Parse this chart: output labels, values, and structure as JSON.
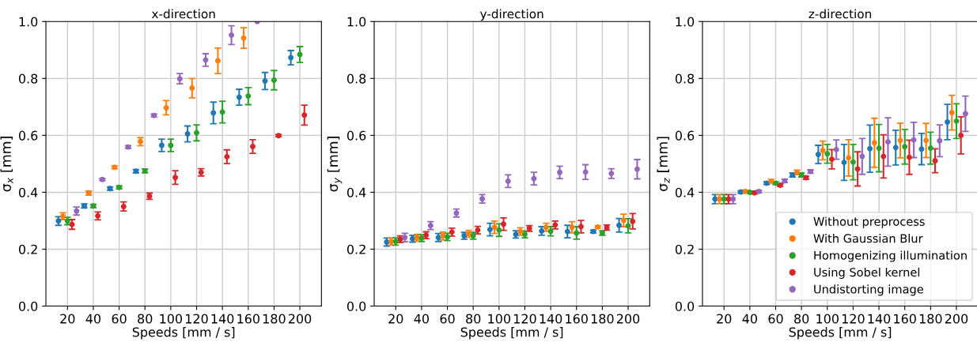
{
  "chart_data": [
    {
      "type": "scatter",
      "title": "x-direction",
      "xlabel": "Speeds [mm / s]",
      "ylabel": "σ$_{x}$ [mm]",
      "xlim": [
        3.3,
        216.7
      ],
      "ylim": [
        0,
        1
      ],
      "xticks": [
        20,
        40,
        60,
        80,
        100,
        120,
        140,
        160,
        180,
        200
      ],
      "yticks": [
        {
          "value": 0,
          "label": "0.0"
        },
        {
          "value": 0.2,
          "label": "0.2"
        },
        {
          "value": 0.4,
          "label": "0.4"
        },
        {
          "value": 0.6,
          "label": "0.6"
        },
        {
          "value": 0.8,
          "label": "0.8"
        },
        {
          "value": 1,
          "label": "1.0"
        }
      ],
      "grid": true,
      "marker": "circle",
      "legend": false,
      "series": [
        {
          "color": "#1f77b4",
          "x": [
            13,
            33,
            53,
            73,
            93,
            113,
            133,
            153,
            173,
            193
          ],
          "values": [
            0.299,
            0.352,
            0.413,
            0.474,
            0.565,
            0.605,
            0.679,
            0.734,
            0.791,
            0.873
          ],
          "errors": [
            0.015,
            0.007,
            0.006,
            0.006,
            0.022,
            0.028,
            0.038,
            0.028,
            0.03,
            0.025
          ]
        },
        {
          "color": "#ff7f0e",
          "x": [
            16.5,
            36.5,
            56.5,
            76.5,
            96.5,
            116.5,
            136.5,
            156.5
          ],
          "values": [
            0.316,
            0.397,
            0.488,
            0.578,
            0.697,
            0.766,
            0.862,
            0.942
          ],
          "errors": [
            0.012,
            0.007,
            0.005,
            0.014,
            0.025,
            0.034,
            0.045,
            0.036
          ]
        },
        {
          "color": "#2ca02c",
          "x": [
            20,
            40,
            60,
            80,
            100,
            120,
            140,
            160,
            180,
            200
          ],
          "values": [
            0.299,
            0.352,
            0.417,
            0.475,
            0.565,
            0.609,
            0.682,
            0.738,
            0.794,
            0.884
          ],
          "errors": [
            0.013,
            0.006,
            0.005,
            0.007,
            0.022,
            0.028,
            0.038,
            0.03,
            0.034,
            0.028
          ]
        },
        {
          "color": "#d62728",
          "x": [
            23.5,
            43.5,
            63.5,
            83.5,
            103.5,
            123.5,
            143.5,
            163.5,
            183.5,
            203.5
          ],
          "values": [
            0.287,
            0.317,
            0.35,
            0.386,
            0.452,
            0.47,
            0.525,
            0.561,
            0.599,
            0.671
          ],
          "errors": [
            0.017,
            0.014,
            0.016,
            0.011,
            0.024,
            0.013,
            0.024,
            0.024,
            0.004,
            0.035
          ]
        },
        {
          "color": "#9467bd",
          "x": [
            27,
            47,
            67,
            87,
            107,
            127,
            147,
            167
          ],
          "values": [
            0.334,
            0.445,
            0.559,
            0.67,
            0.799,
            0.865,
            0.952,
            1.0
          ],
          "errors": [
            0.014,
            0.004,
            0.005,
            0.005,
            0.018,
            0.022,
            0.033,
            null
          ]
        }
      ]
    },
    {
      "type": "scatter",
      "title": "y-direction",
      "xlabel": "Speeds [mm / s]",
      "ylabel": "σ$_{y}$ [mm]",
      "xlim": [
        3.3,
        216.7
      ],
      "ylim": [
        0,
        1
      ],
      "xticks": [
        20,
        40,
        60,
        80,
        100,
        120,
        140,
        160,
        180,
        200
      ],
      "yticks": [
        {
          "value": 0,
          "label": "0.0"
        },
        {
          "value": 0.2,
          "label": "0.2"
        },
        {
          "value": 0.4,
          "label": "0.4"
        },
        {
          "value": 0.6,
          "label": "0.6"
        },
        {
          "value": 0.8,
          "label": "0.8"
        },
        {
          "value": 1,
          "label": "1.0"
        }
      ],
      "grid": true,
      "marker": "circle",
      "legend": false,
      "series": [
        {
          "color": "#1f77b4",
          "x": [
            13,
            33,
            53,
            73,
            93,
            113,
            133,
            153,
            173,
            193
          ],
          "values": [
            0.225,
            0.237,
            0.241,
            0.247,
            0.269,
            0.252,
            0.264,
            0.262,
            0.262,
            0.284
          ],
          "errors": [
            0.014,
            0.012,
            0.014,
            0.012,
            0.022,
            0.013,
            0.015,
            0.022,
            0.005,
            0.024
          ]
        },
        {
          "color": "#ff7f0e",
          "x": [
            16.5,
            36.5,
            56.5,
            76.5,
            96.5,
            116.5,
            136.5,
            156.5,
            176.5,
            196.5
          ],
          "values": [
            0.227,
            0.24,
            0.246,
            0.254,
            0.277,
            0.262,
            0.277,
            0.277,
            0.278,
            0.301
          ],
          "errors": [
            0.013,
            0.012,
            0.014,
            0.012,
            0.022,
            0.013,
            0.014,
            0.02,
            0.004,
            0.022
          ]
        },
        {
          "color": "#2ca02c",
          "x": [
            20,
            40,
            60,
            80,
            100,
            120,
            140,
            160,
            180,
            200
          ],
          "values": [
            0.227,
            0.239,
            0.243,
            0.247,
            0.267,
            0.252,
            0.263,
            0.257,
            0.257,
            0.282
          ],
          "errors": [
            0.013,
            0.012,
            0.013,
            0.012,
            0.022,
            0.012,
            0.016,
            0.022,
            0.008,
            0.025
          ]
        },
        {
          "color": "#d62728",
          "x": [
            23.5,
            43.5,
            63.5,
            83.5,
            103.5,
            123.5,
            143.5,
            163.5,
            183.5,
            203.5
          ],
          "values": [
            0.235,
            0.249,
            0.26,
            0.267,
            0.288,
            0.273,
            0.285,
            0.279,
            0.276,
            0.298
          ],
          "errors": [
            0.012,
            0.012,
            0.014,
            0.013,
            0.022,
            0.01,
            0.014,
            0.022,
            0.009,
            0.027
          ]
        },
        {
          "color": "#9467bd",
          "x": [
            27,
            47,
            67,
            87,
            107,
            127,
            147,
            167,
            187,
            207
          ],
          "values": [
            0.241,
            0.283,
            0.327,
            0.377,
            0.439,
            0.448,
            0.47,
            0.471,
            0.466,
            0.481
          ],
          "errors": [
            0.015,
            0.014,
            0.014,
            0.015,
            0.022,
            0.022,
            0.022,
            0.026,
            0.017,
            0.034
          ]
        }
      ]
    },
    {
      "type": "scatter",
      "title": "z-direction",
      "xlabel": "Speeds [mm / s]",
      "ylabel": "σ$_{z}$ [mm]",
      "xlim": [
        3.3,
        216.7
      ],
      "ylim": [
        0,
        1
      ],
      "xticks": [
        20,
        40,
        60,
        80,
        100,
        120,
        140,
        160,
        180,
        200
      ],
      "yticks": [
        {
          "value": 0,
          "label": "0.0"
        },
        {
          "value": 0.2,
          "label": "0.2"
        },
        {
          "value": 0.4,
          "label": "0.4"
        },
        {
          "value": 0.6,
          "label": "0.6"
        },
        {
          "value": 0.8,
          "label": "0.8"
        },
        {
          "value": 1,
          "label": "1.0"
        }
      ],
      "grid": true,
      "marker": "circle",
      "legend": "bottom right",
      "series": [
        {
          "name": "Without preprocess",
          "color": "#1f77b4",
          "x": [
            13,
            33,
            53,
            73,
            93,
            113,
            133,
            153,
            173,
            193
          ],
          "values": [
            0.376,
            0.401,
            0.432,
            0.461,
            0.533,
            0.505,
            0.553,
            0.557,
            0.552,
            0.647
          ],
          "errors": [
            0.016,
            0.004,
            0.005,
            0.007,
            0.032,
            0.063,
            0.083,
            0.061,
            0.055,
            0.062
          ]
        },
        {
          "name": "With Gaussian Blur",
          "color": "#ff7f0e",
          "x": [
            16.5,
            36.5,
            56.5,
            76.5,
            96.5,
            116.5,
            136.5,
            156.5,
            176.5,
            196.5
          ],
          "values": [
            0.376,
            0.403,
            0.439,
            0.47,
            0.547,
            0.521,
            0.574,
            0.582,
            0.582,
            0.68
          ],
          "errors": [
            0.016,
            0.005,
            0.006,
            0.008,
            0.033,
            0.064,
            0.086,
            0.061,
            0.06,
            0.061
          ]
        },
        {
          "name": "Homogenizing illumination",
          "color": "#2ca02c",
          "x": [
            20,
            40,
            60,
            80,
            100,
            120,
            140,
            160,
            180,
            200
          ],
          "values": [
            0.376,
            0.4,
            0.432,
            0.461,
            0.535,
            0.506,
            0.555,
            0.56,
            0.555,
            0.65
          ],
          "errors": [
            0.016,
            0.004,
            0.005,
            0.007,
            0.033,
            0.062,
            0.083,
            0.061,
            0.056,
            0.061
          ]
        },
        {
          "name": "Using Sobel kernel",
          "color": "#d62728",
          "x": [
            23.5,
            43.5,
            63.5,
            83.5,
            103.5,
            123.5,
            143.5,
            163.5,
            183.5,
            203.5
          ],
          "values": [
            0.376,
            0.398,
            0.425,
            0.451,
            0.516,
            0.482,
            0.526,
            0.523,
            0.511,
            0.6
          ],
          "errors": [
            0.016,
            0.004,
            0.004,
            0.005,
            0.034,
            0.06,
            0.076,
            0.06,
            0.042,
            0.065
          ]
        },
        {
          "name": "Undistorting image",
          "color": "#9467bd",
          "x": [
            27,
            47,
            67,
            87,
            107,
            127,
            147,
            167,
            187,
            207
          ],
          "values": [
            0.376,
            0.403,
            0.44,
            0.473,
            0.55,
            0.526,
            0.577,
            0.584,
            0.581,
            0.676
          ],
          "errors": [
            0.016,
            0.004,
            0.006,
            0.006,
            0.034,
            0.063,
            0.085,
            0.062,
            0.056,
            0.062
          ]
        }
      ]
    }
  ]
}
